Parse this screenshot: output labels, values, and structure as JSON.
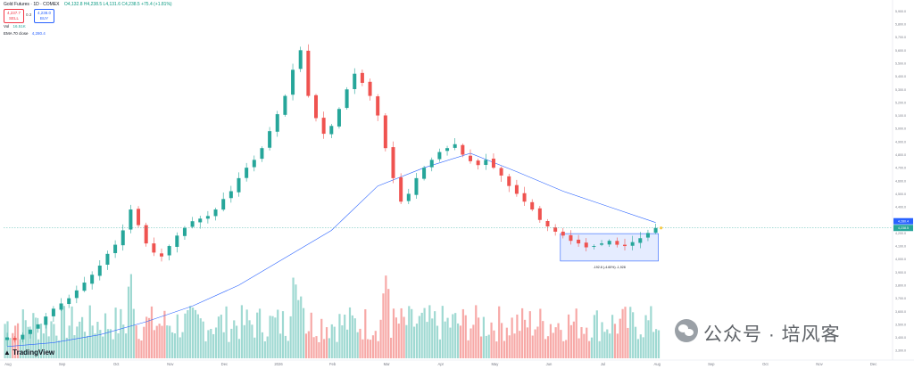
{
  "header": {
    "symbol": "Gold Futures · 1D · COMEX",
    "ohlc": "O4,132.8 H4,238.5 L4,131.6 C4,238.5 +75.4 (+1.81%)"
  },
  "order_panel": {
    "sell_price": "4,237.7",
    "sell_label": "SELL",
    "spread": "0.3",
    "buy_price": "4,238.0",
    "buy_label": "BUY"
  },
  "indicators": {
    "vol_label": "Vol",
    "vol_value": "16.51K",
    "ema_label": "EMA 70 close",
    "ema_value": "4,280.4"
  },
  "branding": {
    "tradingview": "TradingView"
  },
  "watermark": {
    "text": "公众号 · 培风客"
  },
  "colors": {
    "up": "#26a69a",
    "down": "#ef5350",
    "ema": "#2962ff",
    "box": "#2962ff"
  },
  "chart_data": {
    "type": "candlestick",
    "x_ticks": [
      "Aug",
      "Sep",
      "Oct",
      "Nov",
      "Dec",
      "2026",
      "Feb",
      "Mar",
      "Apr",
      "May",
      "Jun",
      "Jul",
      "Aug",
      "Sep",
      "Oct",
      "Nov",
      "Dec"
    ],
    "y_ticks": [
      3300,
      3400,
      3500,
      3600,
      3700,
      3800,
      3900,
      4000,
      4100,
      4200,
      4300,
      4400,
      4500,
      4600,
      4700,
      4800,
      4900,
      5000,
      5100,
      5200,
      5300,
      5400,
      5500,
      5600,
      5700,
      5800,
      5900
    ],
    "ylim": [
      3240,
      5930
    ],
    "last_price": 4238.5,
    "last_price_label": "4,238.5",
    "ema_last_label": "4,280.4",
    "series": [
      {
        "name": "EMA 70 close",
        "values": [
          3330,
          3360,
          3420,
          3520,
          3640,
          3800,
          4010,
          4220,
          4560,
          4700,
          4810,
          4670,
          4520,
          4400,
          4280
        ]
      }
    ],
    "candles_close": [
      3400,
      3380,
      3420,
      3460,
      3500,
      3560,
      3620,
      3660,
      3700,
      3760,
      3820,
      3880,
      3950,
      4040,
      4110,
      4220,
      4380,
      4260,
      4120,
      4050,
      4020,
      4100,
      4180,
      4240,
      4290,
      4310,
      4330,
      4380,
      4460,
      4520,
      4620,
      4700,
      4760,
      4850,
      4980,
      5110,
      5250,
      5450,
      5600,
      5250,
      5080,
      4960,
      5020,
      5150,
      5300,
      5420,
      5350,
      5250,
      5100,
      4850,
      4620,
      4440,
      4500,
      4620,
      4700,
      4760,
      4820,
      4850,
      4880,
      4800,
      4750,
      4720,
      4760,
      4700,
      4640,
      4560,
      4500,
      4440,
      4380,
      4300,
      4250,
      4210,
      4180,
      4140,
      4120,
      4090,
      4100,
      4120,
      4140,
      4110,
      4100,
      4130,
      4160,
      4200,
      4238.5
    ],
    "range_box": {
      "from_index": 72,
      "to_index": 84,
      "top": 4195,
      "bottom": 3985,
      "label": "-192.8 (-4.60%) -1,928"
    },
    "volume": {
      "label": "Vol",
      "last": "16.51K"
    }
  }
}
